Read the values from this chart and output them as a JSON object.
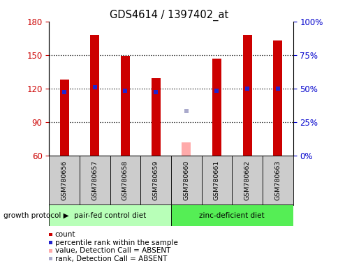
{
  "title": "GDS4614 / 1397402_at",
  "samples": [
    "GSM780656",
    "GSM780657",
    "GSM780658",
    "GSM780659",
    "GSM780660",
    "GSM780661",
    "GSM780662",
    "GSM780663"
  ],
  "count_values": [
    128,
    168,
    149,
    129,
    null,
    147,
    168,
    163
  ],
  "rank_values": [
    117,
    121,
    118,
    117,
    null,
    118,
    120,
    120
  ],
  "absent_count_value": 72,
  "absent_rank_value": 100,
  "absent_sample_idx": 4,
  "ylim": [
    60,
    180
  ],
  "yticks": [
    60,
    90,
    120,
    150,
    180
  ],
  "y2lim": [
    0,
    100
  ],
  "y2ticks": [
    0,
    25,
    50,
    75,
    100
  ],
  "y2ticklabels": [
    "0%",
    "25%",
    "50%",
    "75%",
    "100%"
  ],
  "count_bar_width": 0.3,
  "rank_marker_size": 5,
  "bar_color_count": "#cc0000",
  "bar_color_rank": "#2222cc",
  "bar_color_absent_count": "#ffaaaa",
  "bar_color_absent_rank": "#aaaacc",
  "group1_label": "pair-fed control diet",
  "group2_label": "zinc-deficient diet",
  "group1_indices": [
    0,
    1,
    2,
    3
  ],
  "group2_indices": [
    4,
    5,
    6,
    7
  ],
  "group1_color": "#b8ffb8",
  "group2_color": "#55ee55",
  "protocol_label": "growth protocol",
  "legend_items": [
    {
      "label": "count",
      "color": "#cc0000"
    },
    {
      "label": "percentile rank within the sample",
      "color": "#2222cc"
    },
    {
      "label": "value, Detection Call = ABSENT",
      "color": "#ffaaaa"
    },
    {
      "label": "rank, Detection Call = ABSENT",
      "color": "#aaaacc"
    }
  ],
  "sample_box_color": "#cccccc",
  "left_axis_color": "#cc0000",
  "right_axis_color": "#0000cc",
  "grid_yticks": [
    90,
    120,
    150
  ]
}
